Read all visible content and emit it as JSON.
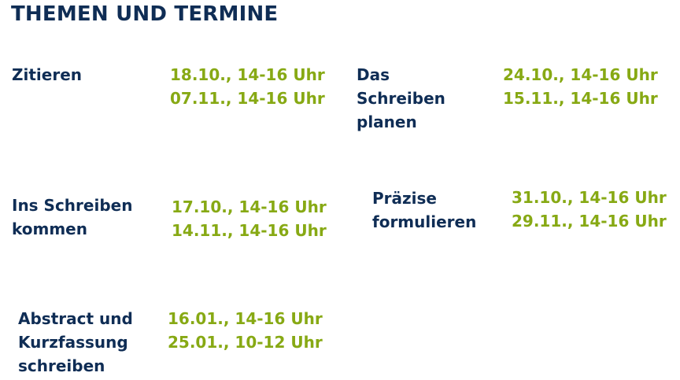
{
  "title": "THEMEN UND TERMINE",
  "colors": {
    "heading": "#0f2d55",
    "dates": "#87a914",
    "background": "#ffffff"
  },
  "topics": [
    {
      "lines": [
        "Zitieren"
      ],
      "dates": [
        "18.10., 14-16 Uhr",
        "07.11., 14-16 Uhr"
      ]
    },
    {
      "lines": [
        "Das",
        "Schreiben",
        "planen"
      ],
      "dates": [
        "24.10., 14-16 Uhr",
        "15.11., 14-16 Uhr"
      ]
    },
    {
      "lines": [
        "Ins Schreiben",
        "kommen"
      ],
      "dates": [
        "17.10., 14-16 Uhr",
        "14.11., 14-16 Uhr"
      ]
    },
    {
      "lines": [
        "Präzise",
        "formulieren"
      ],
      "dates": [
        "31.10., 14-16 Uhr",
        "29.11., 14-16 Uhr"
      ]
    },
    {
      "lines": [
        "Abstract und",
        "Kurzfassung",
        "schreiben"
      ],
      "dates": [
        "16.01., 14-16 Uhr",
        "25.01., 10-12 Uhr"
      ]
    }
  ]
}
